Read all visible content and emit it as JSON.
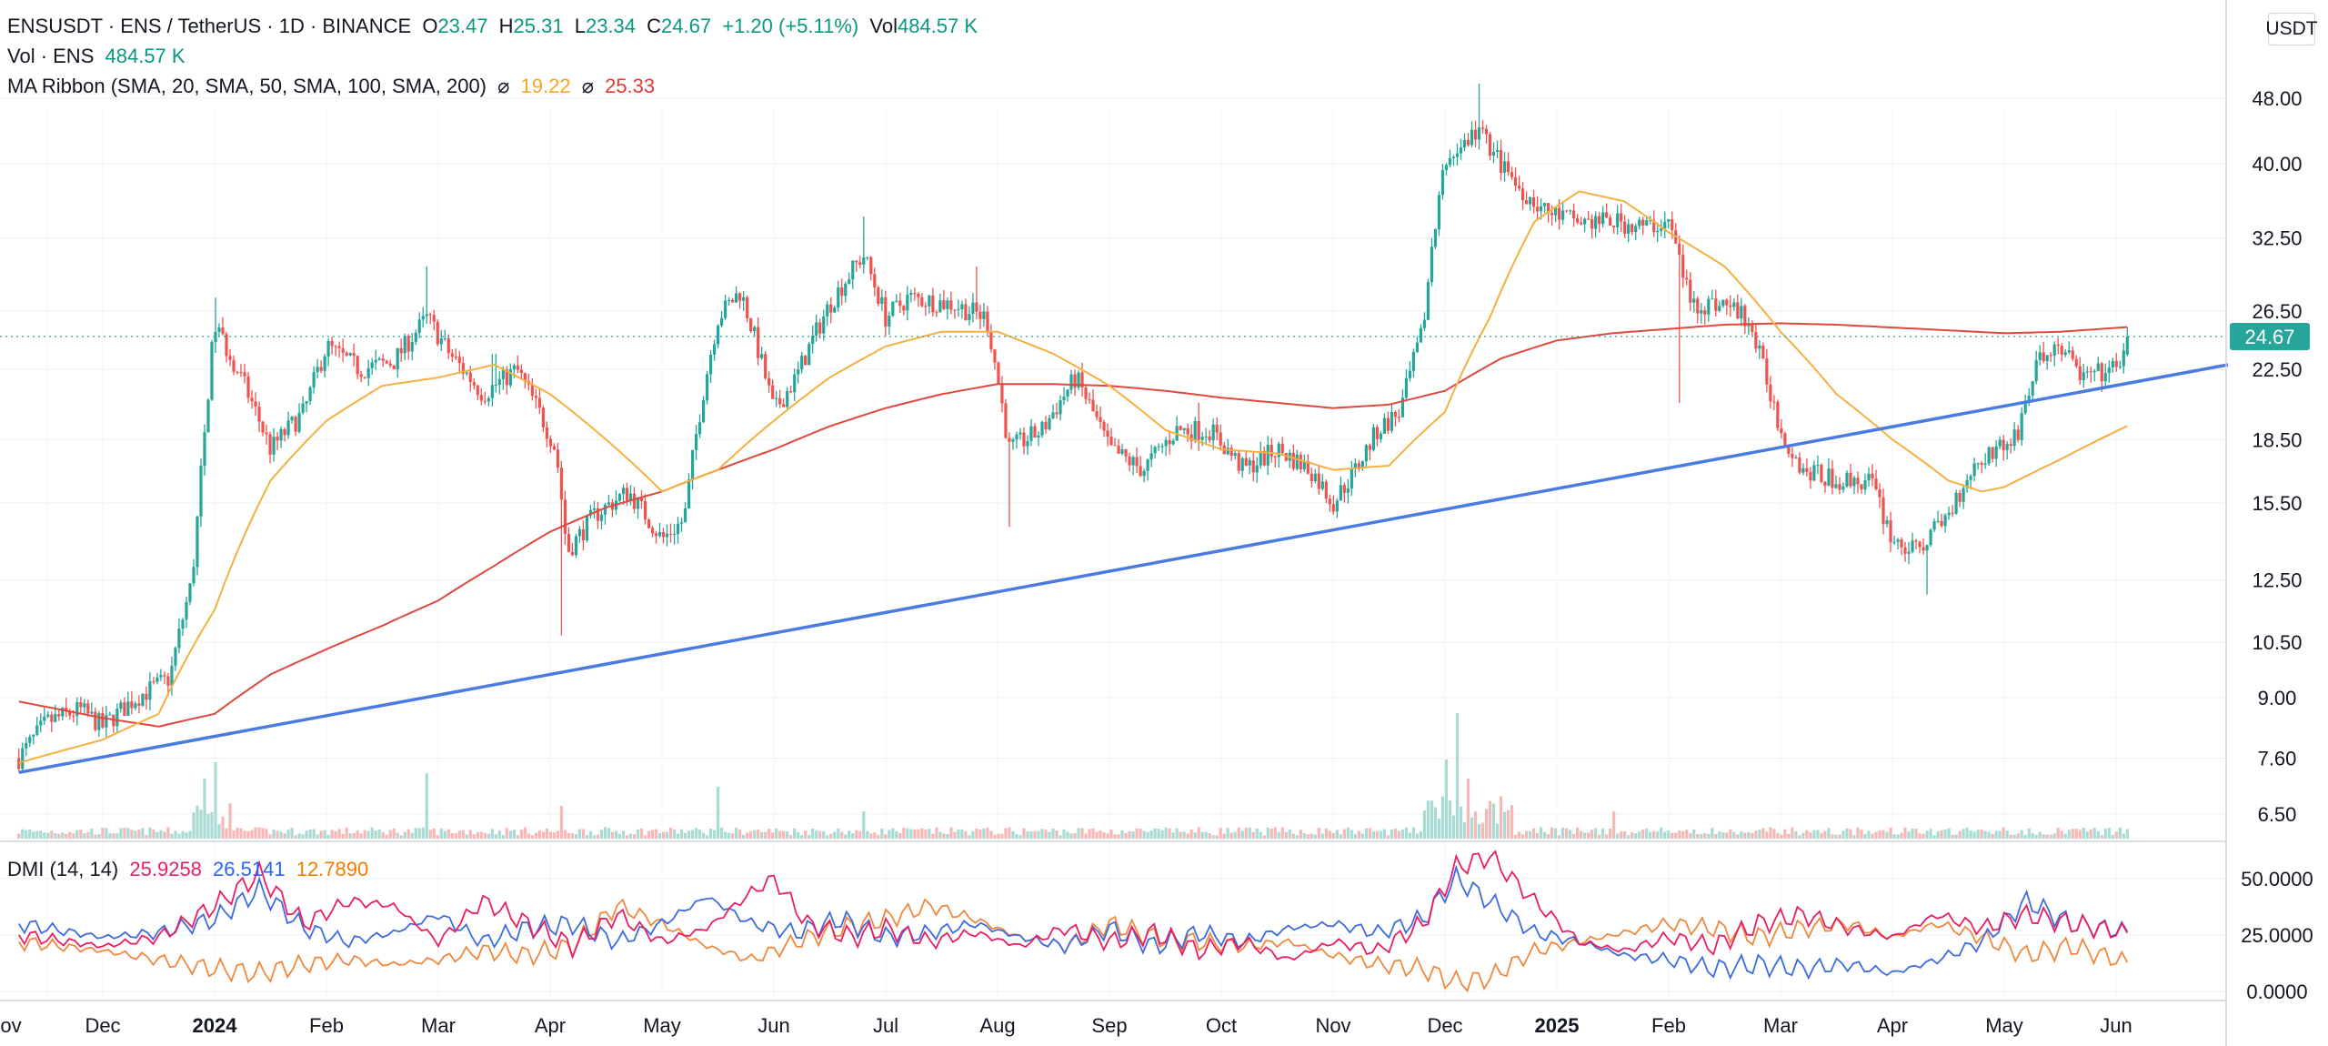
{
  "header": {
    "symbol": "ENSUSDT · ENS / TetherUS · 1D · BINANCE",
    "o_label": "O",
    "o_val": "23.47",
    "h_label": "H",
    "h_val": "25.31",
    "l_label": "L",
    "l_val": "23.34",
    "c_label": "C",
    "c_val": "24.67",
    "change": "+1.20 (+5.11%)",
    "vol_label": "Vol",
    "vol_val": "484.57 K"
  },
  "vol_legend": {
    "label": "Vol · ENS",
    "value": "484.57 K"
  },
  "ma_legend": {
    "label": "MA Ribbon (SMA, 20, SMA, 50, SMA, 100, SMA, 200)",
    "sym": "⌀",
    "v1": "19.22",
    "v2": "25.33"
  },
  "dmi_legend": {
    "label": "DMI (14, 14)",
    "v1": "25.9258",
    "v2": "26.5141",
    "v3": "12.7890"
  },
  "unit": "USDT",
  "last_price": "24.67",
  "colors": {
    "up": "#26a69a",
    "down": "#ef5350",
    "trend": "#4a7be0",
    "ma_short": "#f5b041",
    "ma_long": "#e0483e",
    "dmi_plus": "#e91e63",
    "dmi_minus": "#3d6be0",
    "adx": "#f0883e"
  },
  "chart_data": {
    "type": "candlestick",
    "price_axis_ticks": [
      "48.00",
      "40.00",
      "32.50",
      "26.50",
      "22.50",
      "18.50",
      "15.50",
      "12.50",
      "10.50",
      "9.00",
      "7.60",
      "6.50"
    ],
    "dmi_axis_ticks": [
      "50.0000",
      "25.0000",
      "0.0000"
    ],
    "time_labels": [
      {
        "t": "ov",
        "m": -0.5
      },
      {
        "t": "Dec",
        "m": 0
      },
      {
        "t": "2024",
        "m": 1
      },
      {
        "t": "Feb",
        "m": 2
      },
      {
        "t": "Mar",
        "m": 3
      },
      {
        "t": "Apr",
        "m": 4
      },
      {
        "t": "May",
        "m": 5
      },
      {
        "t": "Jun",
        "m": 6
      },
      {
        "t": "Jul",
        "m": 7
      },
      {
        "t": "Aug",
        "m": 8
      },
      {
        "t": "Sep",
        "m": 9
      },
      {
        "t": "Oct",
        "m": 10
      },
      {
        "t": "Nov",
        "m": 11
      },
      {
        "t": "Dec",
        "m": 12
      },
      {
        "t": "2025",
        "m": 13
      },
      {
        "t": "Feb",
        "m": 14
      },
      {
        "t": "Mar",
        "m": 15
      },
      {
        "t": "Apr",
        "m": 16
      },
      {
        "t": "May",
        "m": 17
      },
      {
        "t": "Jun",
        "m": 18
      }
    ],
    "bold_time_labels": [
      "2024",
      "2025"
    ],
    "close_anchors": [
      [
        -0.75,
        7.6
      ],
      [
        -0.5,
        8.4
      ],
      [
        -0.2,
        8.7
      ],
      [
        0,
        8.3
      ],
      [
        0.3,
        9.0
      ],
      [
        0.6,
        9.5
      ],
      [
        0.8,
        12.5
      ],
      [
        0.9,
        18
      ],
      [
        1.0,
        25.5
      ],
      [
        1.2,
        22.5
      ],
      [
        1.5,
        18
      ],
      [
        1.8,
        20
      ],
      [
        2.0,
        24
      ],
      [
        2.3,
        22.5
      ],
      [
        2.6,
        23
      ],
      [
        2.9,
        26
      ],
      [
        3.1,
        23.5
      ],
      [
        3.4,
        21
      ],
      [
        3.7,
        22.5
      ],
      [
        3.9,
        20
      ],
      [
        4.05,
        18
      ],
      [
        4.15,
        13.5
      ],
      [
        4.4,
        15
      ],
      [
        4.7,
        16
      ],
      [
        5.0,
        14
      ],
      [
        5.2,
        14.8
      ],
      [
        5.5,
        26
      ],
      [
        5.7,
        28
      ],
      [
        6.0,
        20
      ],
      [
        6.2,
        22
      ],
      [
        6.5,
        27
      ],
      [
        6.8,
        31
      ],
      [
        7.0,
        26
      ],
      [
        7.2,
        27.5
      ],
      [
        7.6,
        27
      ],
      [
        7.9,
        26
      ],
      [
        8.1,
        18
      ],
      [
        8.4,
        19
      ],
      [
        8.7,
        22
      ],
      [
        9.0,
        18
      ],
      [
        9.3,
        17
      ],
      [
        9.6,
        19
      ],
      [
        9.9,
        19
      ],
      [
        10.2,
        17
      ],
      [
        10.5,
        18
      ],
      [
        10.8,
        17
      ],
      [
        11.0,
        15.5
      ],
      [
        11.2,
        17
      ],
      [
        11.4,
        19
      ],
      [
        11.6,
        20
      ],
      [
        11.8,
        25
      ],
      [
        12.0,
        40
      ],
      [
        12.3,
        44
      ],
      [
        12.6,
        38
      ],
      [
        12.9,
        35
      ],
      [
        13.2,
        34
      ],
      [
        13.5,
        34
      ],
      [
        13.8,
        33.5
      ],
      [
        14.0,
        34
      ],
      [
        14.2,
        27
      ],
      [
        14.5,
        27
      ],
      [
        14.7,
        26
      ],
      [
        15.0,
        19
      ],
      [
        15.2,
        17
      ],
      [
        15.5,
        16.5
      ],
      [
        15.8,
        16.5
      ],
      [
        16.0,
        14
      ],
      [
        16.2,
        13.5
      ],
      [
        16.5,
        15
      ],
      [
        16.7,
        17
      ],
      [
        16.9,
        18
      ],
      [
        17.1,
        18.5
      ],
      [
        17.3,
        23
      ],
      [
        17.5,
        24
      ],
      [
        17.7,
        22
      ],
      [
        18.0,
        22.5
      ],
      [
        18.05,
        23.47
      ],
      [
        18.1,
        24.67
      ]
    ],
    "spikes": [
      [
        1.0,
        27.5
      ],
      [
        2.9,
        30
      ],
      [
        3.5,
        23.5
      ],
      [
        4.1,
        10.7
      ],
      [
        6.8,
        34.5
      ],
      [
        7.8,
        30
      ],
      [
        8.1,
        14.5
      ],
      [
        9.8,
        20.5
      ],
      [
        11.0,
        15
      ],
      [
        12.3,
        50
      ],
      [
        14.1,
        20.5
      ],
      [
        16.3,
        12
      ]
    ],
    "ma_short_anchors": [
      [
        -0.75,
        7.5
      ],
      [
        0,
        8.0
      ],
      [
        0.5,
        8.6
      ],
      [
        1.0,
        11.5
      ],
      [
        1.5,
        16.5
      ],
      [
        2.0,
        19.5
      ],
      [
        2.5,
        21.5
      ],
      [
        3.0,
        22
      ],
      [
        3.5,
        22.8
      ],
      [
        4.0,
        21
      ],
      [
        4.5,
        18.5
      ],
      [
        5.0,
        16
      ],
      [
        5.5,
        17
      ],
      [
        6.0,
        19.5
      ],
      [
        6.5,
        22
      ],
      [
        7.0,
        24
      ],
      [
        7.5,
        25
      ],
      [
        8.0,
        25
      ],
      [
        8.5,
        23.5
      ],
      [
        9.0,
        21.5
      ],
      [
        9.5,
        19
      ],
      [
        10.0,
        18
      ],
      [
        10.5,
        17.8
      ],
      [
        11.0,
        17
      ],
      [
        11.5,
        17.2
      ],
      [
        12.0,
        20
      ],
      [
        12.4,
        26
      ],
      [
        12.8,
        34
      ],
      [
        13.2,
        37
      ],
      [
        13.6,
        36
      ],
      [
        14.0,
        33
      ],
      [
        14.5,
        30
      ],
      [
        15.0,
        25
      ],
      [
        15.5,
        21
      ],
      [
        16.0,
        18.5
      ],
      [
        16.5,
        16.5
      ],
      [
        16.8,
        16
      ],
      [
        17.0,
        16.2
      ],
      [
        17.5,
        17.5
      ],
      [
        18.1,
        19.22
      ]
    ],
    "ma_long_anchors": [
      [
        -0.75,
        8.9
      ],
      [
        0,
        8.5
      ],
      [
        0.5,
        8.3
      ],
      [
        1.0,
        8.6
      ],
      [
        1.5,
        9.6
      ],
      [
        2.0,
        10.3
      ],
      [
        2.5,
        11.0
      ],
      [
        3.0,
        11.8
      ],
      [
        3.5,
        13.0
      ],
      [
        4.0,
        14.3
      ],
      [
        4.5,
        15.3
      ],
      [
        5.0,
        16.0
      ],
      [
        5.5,
        17.0
      ],
      [
        6.0,
        18.0
      ],
      [
        6.5,
        19.2
      ],
      [
        7.0,
        20.2
      ],
      [
        7.5,
        21.0
      ],
      [
        8.0,
        21.6
      ],
      [
        8.5,
        21.6
      ],
      [
        9.0,
        21.5
      ],
      [
        9.5,
        21.2
      ],
      [
        10.0,
        20.8
      ],
      [
        10.5,
        20.5
      ],
      [
        11.0,
        20.2
      ],
      [
        11.5,
        20.4
      ],
      [
        12.0,
        21.2
      ],
      [
        12.5,
        23.2
      ],
      [
        13.0,
        24.4
      ],
      [
        13.5,
        24.9
      ],
      [
        14.0,
        25.2
      ],
      [
        14.5,
        25.5
      ],
      [
        15.0,
        25.6
      ],
      [
        15.5,
        25.5
      ],
      [
        16.0,
        25.3
      ],
      [
        16.5,
        25.1
      ],
      [
        17.0,
        24.9
      ],
      [
        17.5,
        25.0
      ],
      [
        18.1,
        25.33
      ]
    ],
    "trendline": [
      [
        -0.75,
        7.3
      ],
      [
        19.0,
        22.8
      ]
    ],
    "volume_spikes": [
      [
        1.0,
        0.28
      ],
      [
        0.9,
        0.22
      ],
      [
        2.9,
        0.24
      ],
      [
        5.5,
        0.19
      ],
      [
        6.8,
        0.1
      ],
      [
        4.1,
        0.12
      ],
      [
        12.0,
        0.29
      ],
      [
        12.1,
        0.46
      ],
      [
        12.2,
        0.22
      ],
      [
        13.5,
        0.1
      ]
    ],
    "dmi": {
      "plus_anchors": [
        [
          -0.75,
          25
        ],
        [
          0,
          20
        ],
        [
          0.5,
          24
        ],
        [
          1.0,
          38
        ],
        [
          1.4,
          52
        ],
        [
          1.8,
          30
        ],
        [
          2.2,
          40
        ],
        [
          2.6,
          38
        ],
        [
          3.0,
          22
        ],
        [
          3.4,
          40
        ],
        [
          3.8,
          30
        ],
        [
          4.2,
          20
        ],
        [
          4.6,
          34
        ],
        [
          5.0,
          22
        ],
        [
          5.4,
          28
        ],
        [
          5.8,
          44
        ],
        [
          6.0,
          50
        ],
        [
          6.3,
          30
        ],
        [
          6.7,
          24
        ],
        [
          7.0,
          28
        ],
        [
          7.4,
          22
        ],
        [
          7.8,
          26
        ],
        [
          8.2,
          20
        ],
        [
          8.6,
          28
        ],
        [
          9.0,
          22
        ],
        [
          9.4,
          26
        ],
        [
          9.8,
          18
        ],
        [
          10.2,
          22
        ],
        [
          10.6,
          14
        ],
        [
          11.0,
          22
        ],
        [
          11.4,
          18
        ],
        [
          11.8,
          30
        ],
        [
          12.1,
          55
        ],
        [
          12.4,
          60
        ],
        [
          12.8,
          40
        ],
        [
          13.2,
          22
        ],
        [
          13.6,
          18
        ],
        [
          14.0,
          24
        ],
        [
          14.4,
          20
        ],
        [
          14.8,
          30
        ],
        [
          15.2,
          34
        ],
        [
          15.6,
          28
        ],
        [
          16.0,
          24
        ],
        [
          16.4,
          34
        ],
        [
          16.8,
          28
        ],
        [
          17.2,
          34
        ],
        [
          17.6,
          30
        ],
        [
          18.1,
          25.9
        ]
      ],
      "minus_anchors": [
        [
          -0.75,
          30
        ],
        [
          0,
          24
        ],
        [
          0.5,
          26
        ],
        [
          1.0,
          32
        ],
        [
          1.4,
          45
        ],
        [
          1.8,
          28
        ],
        [
          2.2,
          22
        ],
        [
          2.6,
          26
        ],
        [
          3.0,
          34
        ],
        [
          3.4,
          22
        ],
        [
          3.8,
          28
        ],
        [
          4.2,
          30
        ],
        [
          4.6,
          22
        ],
        [
          5.0,
          30
        ],
        [
          5.4,
          42
        ],
        [
          5.8,
          30
        ],
        [
          6.2,
          26
        ],
        [
          6.6,
          32
        ],
        [
          7.0,
          24
        ],
        [
          7.4,
          26
        ],
        [
          7.8,
          30
        ],
        [
          8.2,
          24
        ],
        [
          8.6,
          20
        ],
        [
          9.0,
          28
        ],
        [
          9.4,
          20
        ],
        [
          9.8,
          26
        ],
        [
          10.2,
          22
        ],
        [
          10.6,
          28
        ],
        [
          11.0,
          30
        ],
        [
          11.4,
          26
        ],
        [
          11.8,
          32
        ],
        [
          12.1,
          50
        ],
        [
          12.4,
          40
        ],
        [
          12.8,
          26
        ],
        [
          13.2,
          22
        ],
        [
          13.6,
          16
        ],
        [
          14.0,
          14
        ],
        [
          14.4,
          10
        ],
        [
          14.8,
          12
        ],
        [
          15.2,
          10
        ],
        [
          15.6,
          12
        ],
        [
          16.0,
          8
        ],
        [
          16.4,
          14
        ],
        [
          16.8,
          22
        ],
        [
          17.2,
          40
        ],
        [
          17.6,
          30
        ],
        [
          18.1,
          26.5
        ]
      ],
      "adx_anchors": [
        [
          -0.75,
          22
        ],
        [
          0,
          18
        ],
        [
          0.5,
          14
        ],
        [
          1.0,
          10
        ],
        [
          1.4,
          8
        ],
        [
          1.8,
          12
        ],
        [
          2.2,
          14
        ],
        [
          2.6,
          12
        ],
        [
          3.0,
          14
        ],
        [
          3.4,
          18
        ],
        [
          3.8,
          16
        ],
        [
          4.2,
          20
        ],
        [
          4.6,
          38
        ],
        [
          5.0,
          30
        ],
        [
          5.4,
          20
        ],
        [
          5.8,
          14
        ],
        [
          6.2,
          22
        ],
        [
          6.6,
          28
        ],
        [
          7.0,
          32
        ],
        [
          7.4,
          38
        ],
        [
          7.8,
          32
        ],
        [
          8.2,
          24
        ],
        [
          8.6,
          20
        ],
        [
          9.0,
          30
        ],
        [
          9.4,
          24
        ],
        [
          9.8,
          22
        ],
        [
          10.2,
          20
        ],
        [
          10.6,
          22
        ],
        [
          11.0,
          16
        ],
        [
          11.4,
          12
        ],
        [
          11.8,
          10
        ],
        [
          12.1,
          4
        ],
        [
          12.4,
          6
        ],
        [
          12.8,
          18
        ],
        [
          13.2,
          22
        ],
        [
          13.6,
          26
        ],
        [
          14.0,
          30
        ],
        [
          14.4,
          28
        ],
        [
          14.8,
          24
        ],
        [
          15.2,
          28
        ],
        [
          15.6,
          30
        ],
        [
          16.0,
          24
        ],
        [
          16.4,
          30
        ],
        [
          16.8,
          24
        ],
        [
          17.2,
          16
        ],
        [
          17.6,
          20
        ],
        [
          18.1,
          12.8
        ]
      ]
    }
  }
}
